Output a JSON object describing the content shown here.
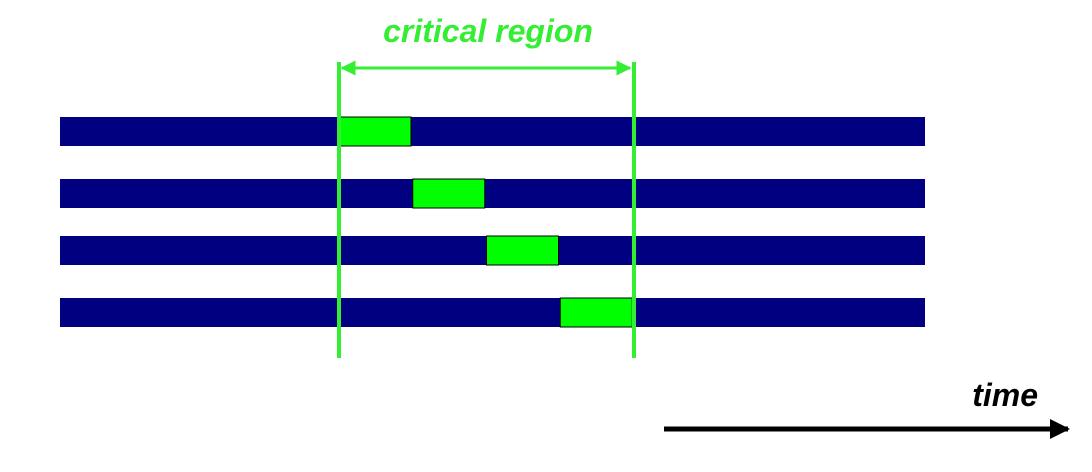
{
  "title": "critical region",
  "time_label": "time",
  "colors": {
    "thread_bar": "#000080",
    "critical_block": "#00ff00",
    "critical_boundary": "#33ee33",
    "title_text": "#33ee33",
    "time_axis": "#000000"
  },
  "threads": [
    {
      "name": "",
      "critical_block": {
        "start": 0.0,
        "end": 0.25
      }
    },
    {
      "name": "",
      "critical_block": {
        "start": 0.25,
        "end": 0.5
      }
    },
    {
      "name": "",
      "critical_block": {
        "start": 0.5,
        "end": 0.75
      }
    },
    {
      "name": "",
      "critical_block": {
        "start": 0.75,
        "end": 1.0
      }
    }
  ]
}
